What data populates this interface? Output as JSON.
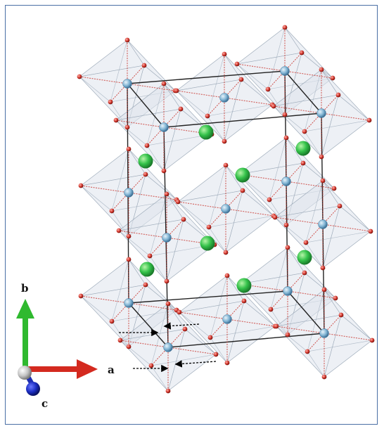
{
  "axes": {
    "a_label": "a",
    "b_label": "b",
    "c_label": "c",
    "a_color": "#d42a1f",
    "b_color": "#2fb92f",
    "c_color": "#1f2fb0",
    "origin_color": "#b9b9b9"
  },
  "colors": {
    "cation_green": "#2fb84a",
    "octahedral_center": "#6fa8c8",
    "oxygen": "#c8322c",
    "polyhedron_fill": "#dfe6ee",
    "cell_edge": "#222222",
    "frame_border": "#4a6fa5"
  },
  "icons": {
    "green_atom": "sphere-green",
    "blue_atom": "sphere-light-blue",
    "oxygen_atom": "sphere-red-small",
    "displacement_arrow": "dashed-arrow"
  }
}
